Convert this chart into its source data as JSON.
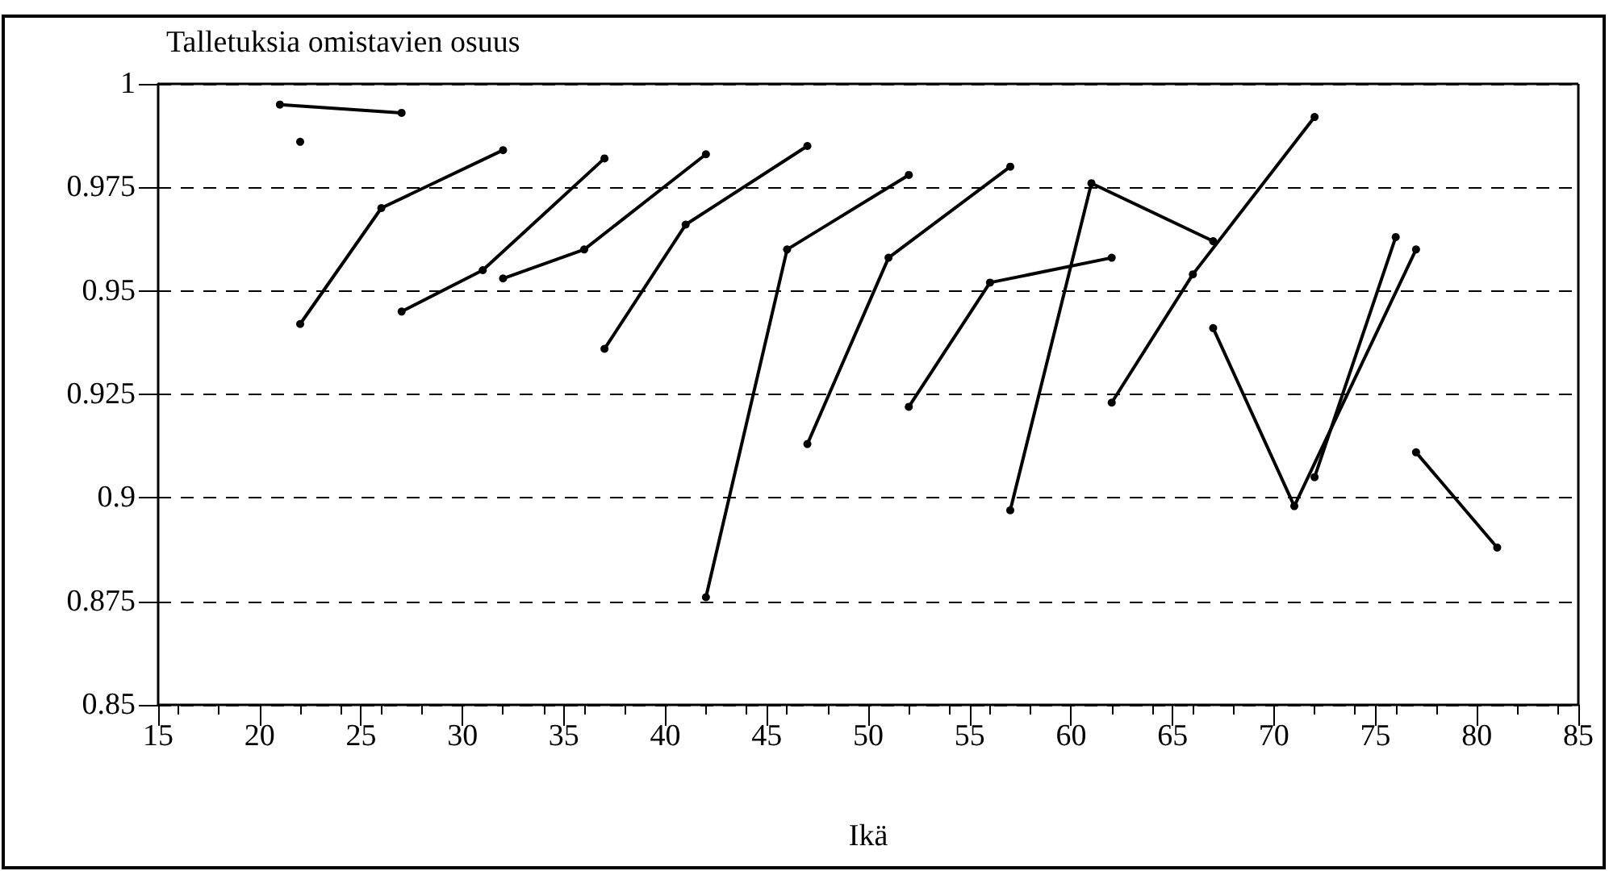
{
  "chart_data": {
    "type": "line",
    "title": "Talletuksia omistavien osuus",
    "xlabel": "Ikä",
    "series": [
      {
        "color": "#000000",
        "x": [
          21,
          27
        ],
        "values": [
          0.995,
          0.993
        ]
      },
      {
        "color": "#000000",
        "x": [
          22
        ],
        "values": [
          0.986
        ]
      },
      {
        "color": "#000000",
        "x": [
          22,
          26,
          32
        ],
        "values": [
          0.942,
          0.97,
          0.984
        ]
      },
      {
        "color": "#000000",
        "x": [
          27,
          31,
          37
        ],
        "values": [
          0.945,
          0.955,
          0.982
        ]
      },
      {
        "color": "#000000",
        "x": [
          32,
          36,
          42
        ],
        "values": [
          0.953,
          0.96,
          0.983
        ]
      },
      {
        "color": "#000000",
        "x": [
          37,
          41,
          47
        ],
        "values": [
          0.936,
          0.966,
          0.985
        ]
      },
      {
        "color": "#000000",
        "x": [
          42,
          46,
          52
        ],
        "values": [
          0.876,
          0.96,
          0.978
        ]
      },
      {
        "color": "#000000",
        "x": [
          47,
          51,
          57
        ],
        "values": [
          0.913,
          0.958,
          0.98
        ]
      },
      {
        "color": "#000000",
        "x": [
          52,
          56,
          62
        ],
        "values": [
          0.922,
          0.952,
          0.958
        ]
      },
      {
        "color": "#000000",
        "x": [
          57,
          61,
          67
        ],
        "values": [
          0.897,
          0.976,
          0.962
        ]
      },
      {
        "color": "#000000",
        "x": [
          62,
          66,
          72
        ],
        "values": [
          0.923,
          0.954,
          0.992
        ]
      },
      {
        "color": "#000000",
        "x": [
          67,
          71,
          77
        ],
        "values": [
          0.941,
          0.898,
          0.96
        ]
      },
      {
        "color": "#000000",
        "x": [
          72,
          76
        ],
        "values": [
          0.905,
          0.963
        ]
      },
      {
        "color": "#000000",
        "x": [
          77,
          81
        ],
        "values": [
          0.911,
          0.888
        ]
      }
    ],
    "xlim": [
      15,
      85
    ],
    "xticks": [
      15,
      20,
      25,
      30,
      35,
      40,
      45,
      50,
      55,
      60,
      65,
      70,
      75,
      80,
      85
    ],
    "ylim": [
      0.85,
      1
    ],
    "yticks": [
      0.85,
      0.875,
      0.9,
      0.925,
      0.95,
      0.975,
      1
    ],
    "grid": "y",
    "marker": "circle",
    "line_style": "solid"
  }
}
